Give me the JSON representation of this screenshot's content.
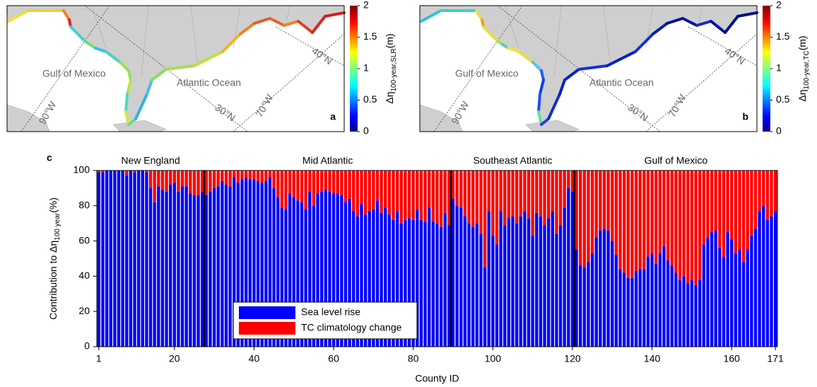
{
  "chart_data": [
    {
      "type": "map",
      "panel_label": "a",
      "labels": {
        "sea": "Gulf of Mexico",
        "ocean": "Atlantic Ocean",
        "lon1": "90°W",
        "lat1": "30°N",
        "lon2": "70°W",
        "lat2": "40°N"
      },
      "colorbar_label": {
        "symbol": "Δη",
        "subscript": "100-year,SLR",
        "unit": "(m)"
      },
      "cbar_lim": [
        0,
        2
      ],
      "cbar_ticks": [
        0,
        0.5,
        1,
        1.5,
        2
      ],
      "coastline_colors": [
        "#e8e040",
        "#f0d030",
        "#f08020",
        "#e02020",
        "#40d0e0",
        "#60e090",
        "#80e060",
        "#30c0f0",
        "#50d0c0",
        "#a0e050",
        "#90e060",
        "#c0e040",
        "#40e0c0",
        "#e0e040",
        "#60e090",
        "#30b0f0",
        "#40c0f0",
        "#80e060",
        "#a0e050",
        "#c0e040",
        "#f0b020",
        "#f08020",
        "#e06020",
        "#f06020",
        "#f08020",
        "#e04020",
        "#e02020",
        "#d02020"
      ]
    },
    {
      "type": "map",
      "panel_label": "b",
      "labels": {
        "sea": "Gulf of Mexico",
        "ocean": "Atlantic Ocean",
        "lon1": "90°W",
        "lat1": "30°N",
        "lon2": "70°W",
        "lat2": "40°N"
      },
      "colorbar_label": {
        "symbol": "Δη",
        "subscript": "100-year,TC",
        "unit": "(m)"
      },
      "cbar_lim": [
        0,
        2
      ],
      "cbar_ticks": [
        0,
        0.5,
        1,
        1.5,
        2
      ],
      "coastline_colors": [
        "#30c0e0",
        "#40d0c0",
        "#e0e040",
        "#f0a020",
        "#e0e040",
        "#a0e050",
        "#50d0c0",
        "#f0e040",
        "#e0e040",
        "#60c0e0",
        "#2060f0",
        "#1040e0",
        "#2050f0",
        "#60e0a0",
        "#2040e0",
        "#1030d0",
        "#0020c0",
        "#0020d0",
        "#1030e0",
        "#0020c0",
        "#1030d0",
        "#0020b0",
        "#0010a0",
        "#0010a0",
        "#1030c0",
        "#0010a0",
        "#001090",
        "#001080"
      ]
    },
    {
      "type": "stacked_bar",
      "panel_label": "c",
      "xlabel": "County ID",
      "ylabel": {
        "text": "Contribution to Δη",
        "subscript": "100 year",
        "unit": "(%)"
      },
      "xlim": [
        0.5,
        171.5
      ],
      "xticks": [
        1,
        20,
        40,
        60,
        80,
        100,
        120,
        140,
        160,
        171
      ],
      "ylim": [
        0,
        100
      ],
      "yticks": [
        0,
        20,
        40,
        60,
        80,
        100
      ],
      "regions": [
        {
          "name": "New England",
          "start": 0.5,
          "end": 27.5
        },
        {
          "name": "Mid Atlantic",
          "start": 27.5,
          "end": 89.5
        },
        {
          "name": "Southeast Atlantic",
          "start": 89.5,
          "end": 120.5
        },
        {
          "name": "Gulf of Mexico",
          "start": 120.5,
          "end": 171.5
        }
      ],
      "x": [
        1,
        2,
        3,
        4,
        5,
        6,
        7,
        8,
        9,
        10,
        11,
        12,
        13,
        14,
        15,
        16,
        17,
        18,
        19,
        20,
        21,
        22,
        23,
        24,
        25,
        26,
        27,
        28,
        29,
        30,
        31,
        32,
        33,
        34,
        35,
        36,
        37,
        38,
        39,
        40,
        41,
        42,
        43,
        44,
        45,
        46,
        47,
        48,
        49,
        50,
        51,
        52,
        53,
        54,
        55,
        56,
        57,
        58,
        59,
        60,
        61,
        62,
        63,
        64,
        65,
        66,
        67,
        68,
        69,
        70,
        71,
        72,
        73,
        74,
        75,
        76,
        77,
        78,
        79,
        80,
        81,
        82,
        83,
        84,
        85,
        86,
        87,
        88,
        89,
        90,
        91,
        92,
        93,
        94,
        95,
        96,
        97,
        98,
        99,
        100,
        101,
        102,
        103,
        104,
        105,
        106,
        107,
        108,
        109,
        110,
        111,
        112,
        113,
        114,
        115,
        116,
        117,
        118,
        119,
        120,
        121,
        122,
        123,
        124,
        125,
        126,
        127,
        128,
        129,
        130,
        131,
        132,
        133,
        134,
        135,
        136,
        137,
        138,
        139,
        140,
        141,
        142,
        143,
        144,
        145,
        146,
        147,
        148,
        149,
        150,
        151,
        152,
        153,
        154,
        155,
        156,
        157,
        158,
        159,
        160,
        161,
        162,
        163,
        164,
        165,
        166,
        167,
        168,
        169,
        170,
        171
      ],
      "series": [
        {
          "name": "Sea level rise",
          "color": "#0000ff",
          "values": [
            99,
            99,
            100,
            100,
            100,
            100,
            100,
            97,
            100,
            99,
            100,
            100,
            99,
            90,
            82,
            91,
            89,
            88,
            92,
            93,
            88,
            91,
            91,
            87,
            86,
            86,
            88,
            86,
            88,
            90,
            91,
            94,
            92,
            91,
            96,
            93,
            95,
            96,
            95,
            95,
            94,
            93,
            94,
            96,
            90,
            85,
            79,
            78,
            87,
            85,
            83,
            82,
            78,
            88,
            80,
            87,
            88,
            89,
            88,
            87,
            87,
            86,
            82,
            84,
            77,
            74,
            81,
            75,
            77,
            78,
            83,
            76,
            79,
            75,
            72,
            77,
            70,
            72,
            73,
            72,
            78,
            72,
            71,
            79,
            71,
            70,
            68,
            76,
            69,
            84,
            80,
            79,
            74,
            70,
            68,
            70,
            64,
            45,
            77,
            63,
            58,
            77,
            69,
            73,
            74,
            70,
            74,
            77,
            73,
            63,
            76,
            74,
            69,
            73,
            77,
            64,
            69,
            79,
            90,
            88,
            55,
            46,
            45,
            48,
            53,
            62,
            66,
            67,
            66,
            60,
            52,
            44,
            42,
            39,
            39,
            43,
            44,
            44,
            51,
            53,
            47,
            53,
            57,
            49,
            46,
            42,
            38,
            40,
            36,
            38,
            35,
            38,
            58,
            62,
            65,
            66,
            56,
            51,
            65,
            61,
            53,
            55,
            48,
            55,
            63,
            67,
            77,
            80,
            72,
            74,
            77
          ]
        },
        {
          "name": "TC climatology change",
          "color": "#ff0000",
          "values": [
            1,
            1,
            0,
            0,
            0,
            0,
            0,
            3,
            0,
            1,
            0,
            0,
            1,
            10,
            18,
            9,
            11,
            12,
            8,
            7,
            12,
            9,
            9,
            13,
            14,
            14,
            12,
            14,
            12,
            10,
            9,
            6,
            8,
            9,
            4,
            7,
            5,
            4,
            5,
            5,
            6,
            7,
            6,
            4,
            10,
            15,
            21,
            22,
            13,
            15,
            17,
            18,
            22,
            12,
            20,
            13,
            12,
            11,
            12,
            13,
            13,
            14,
            18,
            16,
            23,
            26,
            19,
            25,
            23,
            22,
            17,
            24,
            21,
            25,
            28,
            23,
            30,
            28,
            27,
            28,
            22,
            28,
            29,
            21,
            29,
            30,
            32,
            24,
            31,
            16,
            20,
            21,
            26,
            30,
            32,
            30,
            36,
            55,
            23,
            37,
            42,
            23,
            31,
            27,
            26,
            30,
            26,
            23,
            27,
            37,
            24,
            26,
            31,
            27,
            23,
            36,
            31,
            21,
            10,
            12,
            45,
            54,
            55,
            52,
            47,
            38,
            34,
            33,
            34,
            40,
            48,
            56,
            58,
            61,
            61,
            57,
            56,
            56,
            49,
            47,
            53,
            47,
            43,
            51,
            54,
            58,
            62,
            60,
            64,
            62,
            65,
            62,
            42,
            38,
            35,
            34,
            44,
            49,
            35,
            39,
            47,
            45,
            52,
            45,
            37,
            33,
            23,
            20,
            28,
            26,
            23
          ]
        }
      ]
    }
  ]
}
